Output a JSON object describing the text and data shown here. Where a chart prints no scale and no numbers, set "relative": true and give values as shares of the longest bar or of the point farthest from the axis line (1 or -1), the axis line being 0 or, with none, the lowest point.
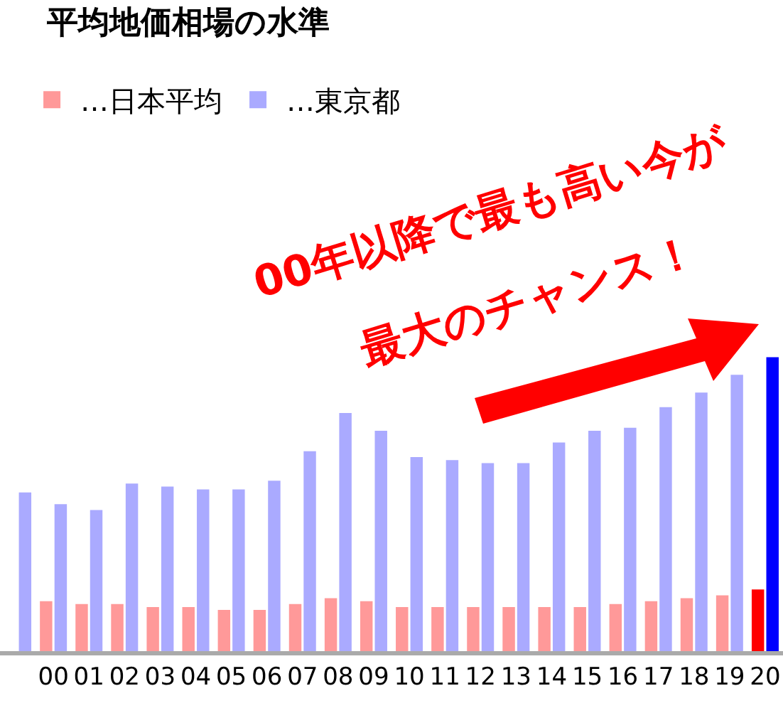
{
  "chart_data": {
    "type": "bar",
    "title": "平均地価相場の水準",
    "relative": true,
    "categories": [
      null,
      "00",
      "01",
      "02",
      "03",
      "04",
      "05",
      "06",
      "07",
      "08",
      "09",
      "10",
      "11",
      "12",
      "13",
      "14",
      "15",
      "16",
      "17",
      "18",
      "19",
      "20"
    ],
    "series": [
      {
        "name": "…日本平均",
        "colors": [
          "#ff9999",
          "#ff9999",
          "#ff9999",
          "#ff9999",
          "#ff9999",
          "#ff9999",
          "#ff9999",
          "#ff9999",
          "#ff9999",
          "#ff9999",
          "#ff9999",
          "#ff9999",
          "#ff9999",
          "#ff9999",
          "#ff9999",
          "#ff9999",
          "#ff9999",
          "#ff9999",
          "#ff9999",
          "#ff9999",
          "#ff9999",
          "#ff0000"
        ],
        "values": [
          null,
          0.17,
          0.16,
          0.16,
          0.15,
          0.15,
          0.14,
          0.14,
          0.16,
          0.18,
          0.17,
          0.15,
          0.15,
          0.15,
          0.15,
          0.15,
          0.15,
          0.16,
          0.17,
          0.18,
          0.19,
          0.21
        ]
      },
      {
        "name": "…東京都",
        "colors": [
          "#aaaaff",
          "#aaaaff",
          "#aaaaff",
          "#aaaaff",
          "#aaaaff",
          "#aaaaff",
          "#aaaaff",
          "#aaaaff",
          "#aaaaff",
          "#aaaaff",
          "#aaaaff",
          "#aaaaff",
          "#aaaaff",
          "#aaaaff",
          "#aaaaff",
          "#aaaaff",
          "#aaaaff",
          "#aaaaff",
          "#aaaaff",
          "#aaaaff",
          "#aaaaff",
          "#0000ff"
        ],
        "values": [
          0.54,
          0.5,
          0.48,
          0.57,
          0.56,
          0.55,
          0.55,
          0.58,
          0.68,
          0.81,
          0.75,
          0.66,
          0.65,
          0.64,
          0.64,
          0.71,
          0.75,
          0.76,
          0.83,
          0.88,
          0.94,
          1
        ]
      }
    ],
    "legend": "top left",
    "grid": false,
    "annotations": [
      "00年以降で最も高い今が",
      "最大のチャンス！"
    ]
  }
}
